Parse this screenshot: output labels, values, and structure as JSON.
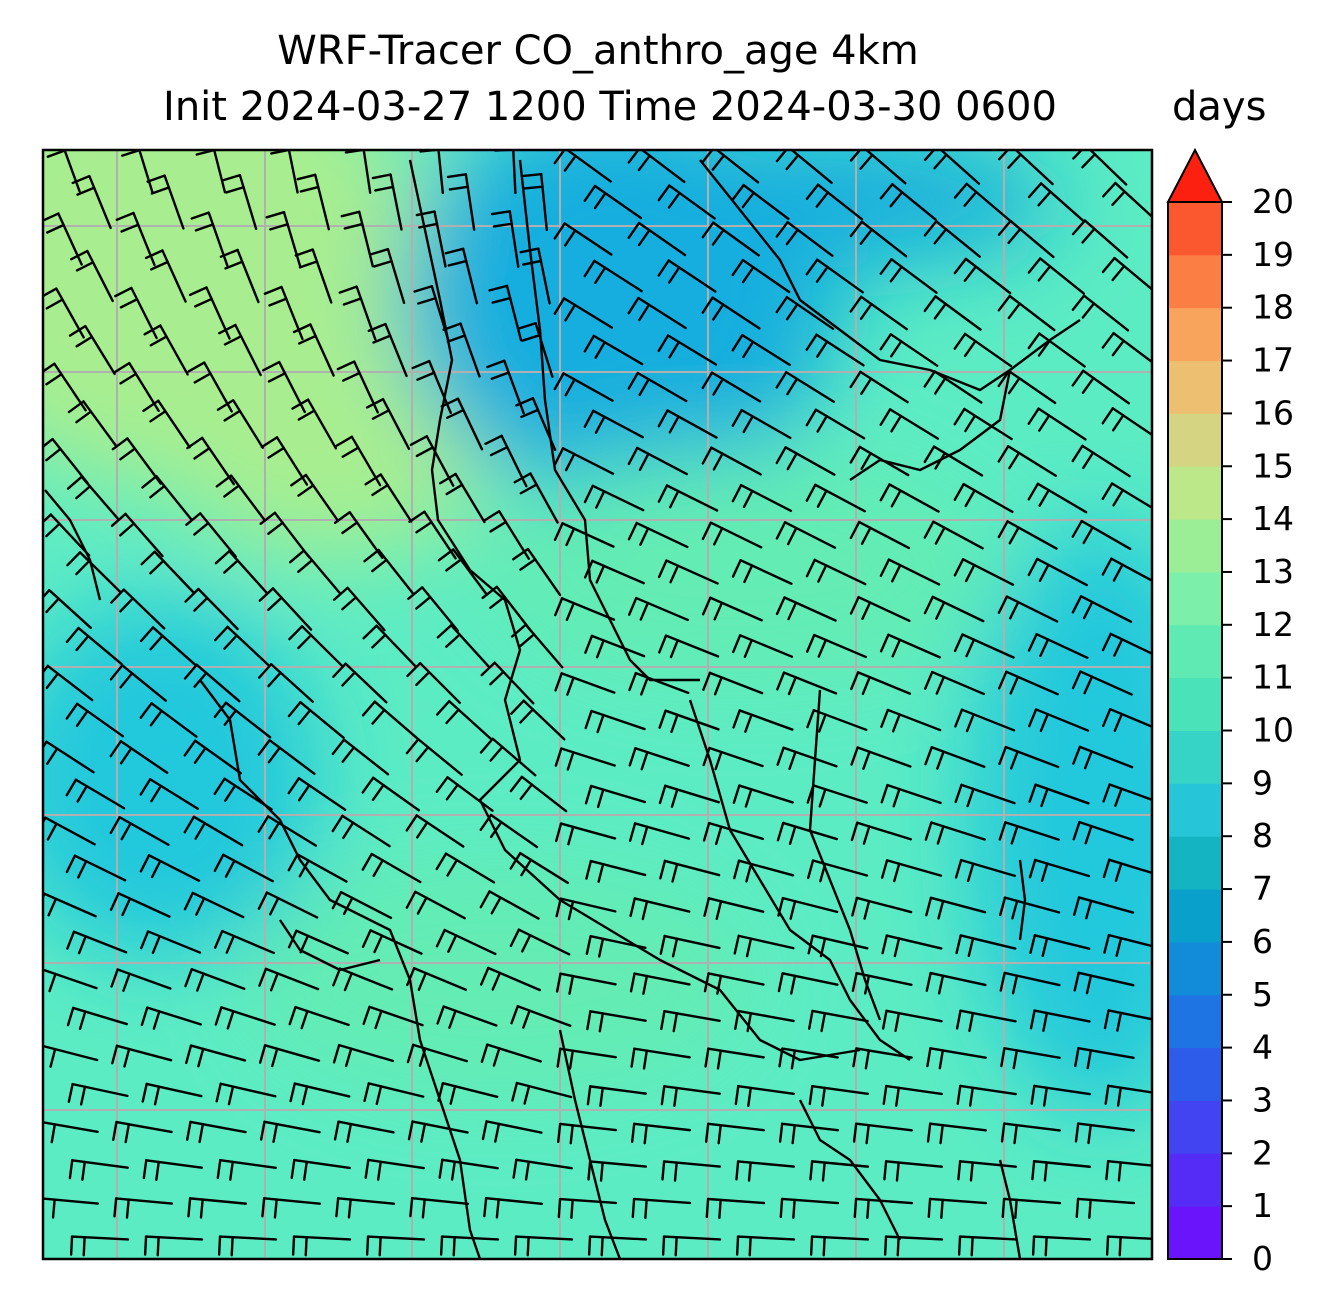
{
  "title": {
    "line1": "WRF-Tracer CO_anthro_age 4km",
    "line2": "Init 2024-03-27 1200 Time 2024-03-30 0600"
  },
  "colorbar": {
    "units": "days",
    "ticks": [
      "0",
      "1",
      "2",
      "3",
      "4",
      "5",
      "6",
      "7",
      "8",
      "9",
      "10",
      "11",
      "12",
      "13",
      "14",
      "15",
      "16",
      "17",
      "18",
      "19",
      "20"
    ],
    "colors": [
      "#6a14fb",
      "#542cf6",
      "#4144f0",
      "#2e5cea",
      "#1e74e2",
      "#128bd8",
      "#0aa0cc",
      "#14b4c2",
      "#26c6d8",
      "#36d4c6",
      "#4ae2b8",
      "#5eeab2",
      "#7cf0aa",
      "#9cee96",
      "#bce88a",
      "#d4d482",
      "#ecc070",
      "#f8a45c",
      "#fb7e44",
      "#fb5830",
      "#fb2010"
    ],
    "extend": "max"
  },
  "map": {
    "field": "CO_anthro_age",
    "background_color": "#5cecc4",
    "region_colors": {
      "northwest": "#a8ee90",
      "great_lakes_corridor": "#12aede",
      "central": "#64ecb4",
      "east": "#20c8dc"
    },
    "coastline_color": "#000000",
    "gridline_color": "#b0b0b0",
    "wind_barb_color": "#000000"
  }
}
